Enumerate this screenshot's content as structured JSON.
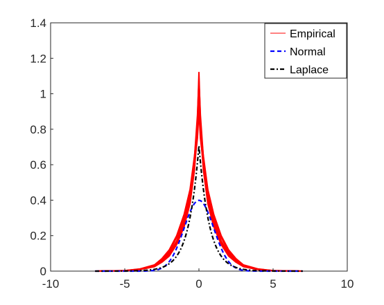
{
  "chart_data": {
    "type": "line",
    "title": "",
    "xlabel": "",
    "ylabel": "",
    "xlim": [
      -10,
      10
    ],
    "ylim": [
      0,
      1.4
    ],
    "xticks": [
      -10,
      -5,
      0,
      5,
      10
    ],
    "yticks": [
      0,
      0.2,
      0.4,
      0.6,
      0.8,
      1,
      1.2,
      1.4
    ],
    "xtick_labels": [
      "-10",
      "-5",
      "0",
      "5",
      "10"
    ],
    "ytick_labels": [
      "0",
      "0.2",
      "0.4",
      "0.6",
      "0.8",
      "1",
      "1.2",
      "1.4"
    ],
    "grid": false,
    "legend_position": "top-right",
    "series": [
      {
        "name": "Empirical",
        "color": "#ff0000",
        "style": "solid",
        "curves": [
          {
            "x": [
              -7,
              -5,
              -4,
              -3,
              -2.5,
              -2,
              -1.5,
              -1,
              -0.6,
              -0.3,
              -0.1,
              0,
              0.1,
              0.3,
              0.6,
              1,
              1.5,
              2,
              2.5,
              3,
              4,
              5,
              7
            ],
            "y": [
              0,
              0.002,
              0.01,
              0.03,
              0.06,
              0.1,
              0.17,
              0.28,
              0.42,
              0.62,
              0.85,
              1.12,
              0.85,
              0.62,
              0.42,
              0.28,
              0.17,
              0.1,
              0.06,
              0.03,
              0.01,
              0.002,
              0
            ]
          },
          {
            "x": [
              -7,
              -5,
              -4,
              -3,
              -2.5,
              -2,
              -1.5,
              -1,
              -0.6,
              -0.3,
              -0.1,
              0,
              0.1,
              0.3,
              0.6,
              1,
              1.5,
              2,
              2.5,
              3,
              4,
              5,
              7
            ],
            "y": [
              0,
              0.002,
              0.008,
              0.025,
              0.05,
              0.085,
              0.15,
              0.25,
              0.38,
              0.57,
              0.8,
              1.05,
              0.8,
              0.57,
              0.38,
              0.25,
              0.15,
              0.085,
              0.05,
              0.025,
              0.008,
              0.002,
              0
            ]
          },
          {
            "x": [
              -7,
              -5,
              -4,
              -3,
              -2.5,
              -2,
              -1.5,
              -1,
              -0.6,
              -0.3,
              -0.1,
              0,
              0.1,
              0.3,
              0.6,
              1,
              1.5,
              2,
              2.5,
              3,
              4,
              5,
              7
            ],
            "y": [
              0,
              0.003,
              0.012,
              0.035,
              0.07,
              0.12,
              0.2,
              0.32,
              0.46,
              0.65,
              0.82,
              0.98,
              0.82,
              0.65,
              0.46,
              0.32,
              0.2,
              0.12,
              0.07,
              0.035,
              0.012,
              0.003,
              0
            ]
          },
          {
            "x": [
              -7,
              -5,
              -4,
              -3,
              -2.5,
              -2,
              -1.5,
              -1,
              -0.6,
              -0.3,
              -0.1,
              0,
              0.1,
              0.3,
              0.6,
              1,
              1.5,
              2,
              2.5,
              3,
              4,
              5,
              7
            ],
            "y": [
              0,
              0.002,
              0.009,
              0.028,
              0.055,
              0.095,
              0.16,
              0.26,
              0.4,
              0.6,
              0.75,
              0.9,
              0.75,
              0.6,
              0.4,
              0.26,
              0.16,
              0.095,
              0.055,
              0.028,
              0.009,
              0.002,
              0
            ]
          },
          {
            "x": [
              -7,
              -5,
              -4,
              -3,
              -2.5,
              -2,
              -1.5,
              -1,
              -0.6,
              -0.3,
              -0.1,
              0,
              0.1,
              0.3,
              0.6,
              1,
              1.5,
              2,
              2.5,
              3,
              4,
              5,
              7
            ],
            "y": [
              0,
              0.003,
              0.011,
              0.032,
              0.065,
              0.11,
              0.19,
              0.3,
              0.44,
              0.64,
              0.88,
              1.08,
              0.88,
              0.64,
              0.44,
              0.3,
              0.19,
              0.11,
              0.065,
              0.032,
              0.011,
              0.003,
              0
            ]
          }
        ]
      },
      {
        "name": "Normal",
        "color": "#0000ff",
        "style": "dashed",
        "distribution": "normal",
        "mean": 0,
        "sd": 1
      },
      {
        "name": "Laplace",
        "color": "#000000",
        "style": "dash-dot",
        "distribution": "laplace",
        "mean": 0,
        "scale": 0.707
      }
    ],
    "x_range": [
      -7,
      7
    ]
  }
}
